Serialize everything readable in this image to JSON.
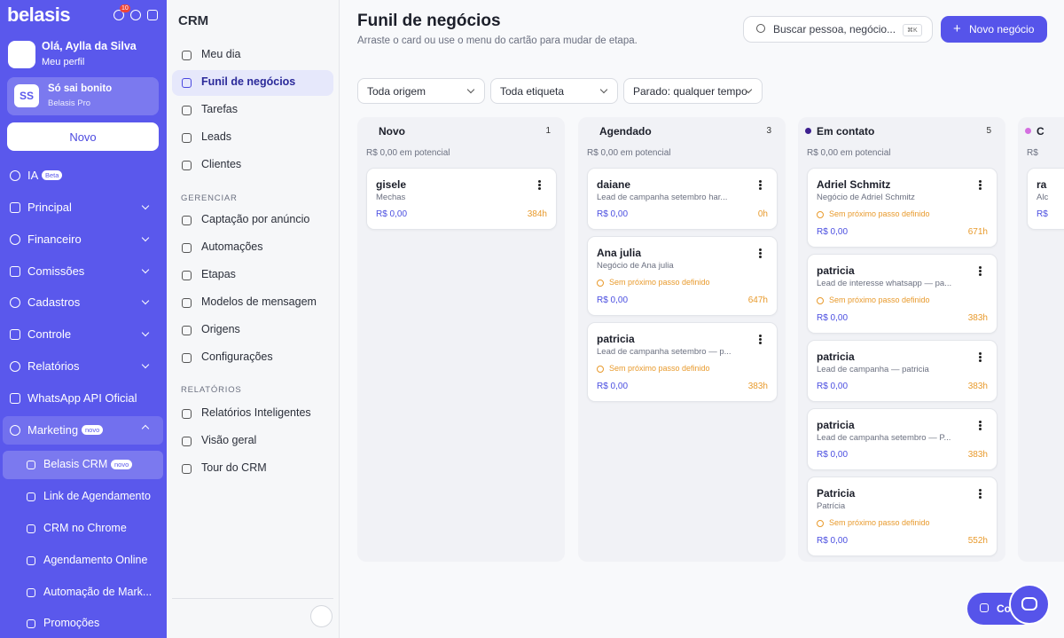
{
  "sidebar": {
    "brand": "belasis",
    "notif_count": "10",
    "greeting": "Olá, Aylla da Silva",
    "profile_link": "Meu perfil",
    "account": {
      "initials": "SS",
      "name": "Só sai bonito",
      "plan": "Belasis Pro"
    },
    "new_button": "Novo",
    "items": [
      {
        "label": "IA",
        "badge": "Beta"
      },
      {
        "label": "Principal"
      },
      {
        "label": "Financeiro"
      },
      {
        "label": "Comissões"
      },
      {
        "label": "Cadastros"
      },
      {
        "label": "Controle"
      },
      {
        "label": "Relatórios"
      },
      {
        "label": "WhatsApp API Oficial"
      },
      {
        "label": "Marketing",
        "badge": "novo"
      }
    ],
    "subitems": [
      {
        "label": "Belasis CRM",
        "badge": "novo"
      },
      {
        "label": "Link de Agendamento"
      },
      {
        "label": "CRM no Chrome"
      },
      {
        "label": "Agendamento Online"
      },
      {
        "label": "Automação de Mark..."
      },
      {
        "label": "Promoções"
      }
    ]
  },
  "crm_menu": {
    "title": "CRM",
    "items": [
      "Meu dia",
      "Funil de negócios",
      "Tarefas",
      "Leads",
      "Clientes"
    ],
    "sections": [
      {
        "title": "GERENCIAR",
        "items": [
          "Captação por anúncio",
          "Automações",
          "Etapas",
          "Modelos de mensagem",
          "Origens",
          "Configurações"
        ]
      },
      {
        "title": "RELATÓRIOS",
        "items": [
          "Relatórios Inteligentes",
          "Visão geral",
          "Tour do CRM"
        ]
      }
    ]
  },
  "header": {
    "title": "Funil de negócios",
    "subtitle": "Arraste o card ou use o menu do cartão para mudar de etapa.",
    "search_placeholder": "Buscar pessoa, negócio...",
    "search_shortcut": "⌘K",
    "new_button": "Novo negócio"
  },
  "filters": [
    "Toda origem",
    "Toda etiqueta",
    "Parado: qualquer tempo"
  ],
  "columns": [
    {
      "name": "Novo",
      "count": 1,
      "potential": "R$ 0,00 em potencial",
      "cards": [
        {
          "title": "gisele",
          "subtitle": "Mechas",
          "value": "R$ 0,00",
          "time": "384h"
        }
      ]
    },
    {
      "name": "Agendado",
      "count": 3,
      "potential": "R$ 0,00 em potencial",
      "cards": [
        {
          "title": "daiane",
          "subtitle": "Lead de campanha setembro har...",
          "value": "R$ 0,00",
          "time": "0h"
        },
        {
          "title": "Ana julia",
          "subtitle": "Negócio de Ana julia",
          "warning": "Sem próximo passo definido",
          "value": "R$ 0,00",
          "time": "647h"
        },
        {
          "title": "patricia",
          "subtitle": "Lead de campanha setembro — p...",
          "warning": "Sem próximo passo definido",
          "value": "R$ 0,00",
          "time": "383h"
        }
      ]
    },
    {
      "name": "Em contato",
      "count": 5,
      "dot_color": "#3d1f8f",
      "potential": "R$ 0,00 em potencial",
      "cards": [
        {
          "title": "Adriel Schmitz",
          "subtitle": "Negócio de Adriel Schmitz",
          "warning": "Sem próximo passo definido",
          "value": "R$ 0,00",
          "time": "671h"
        },
        {
          "title": "patricia",
          "subtitle": "Lead de interesse whatsapp — pa...",
          "warning": "Sem próximo passo definido",
          "value": "R$ 0,00",
          "time": "383h"
        },
        {
          "title": "patricia",
          "subtitle": "Lead de campanha — patricia",
          "value": "R$ 0,00",
          "time": "383h"
        },
        {
          "title": "patricia",
          "subtitle": "Lead de campanha setembro — P...",
          "value": "R$ 0,00",
          "time": "383h"
        },
        {
          "title": "Patricia",
          "subtitle": "Patrícia",
          "warning": "Sem próximo passo definido",
          "value": "R$ 0,00",
          "time": "552h"
        }
      ]
    },
    {
      "name": "C",
      "dot_color": "#d46fe0",
      "potential": "R$",
      "cards": [
        {
          "title": "ra",
          "subtitle": "Alc",
          "value": "R$"
        }
      ]
    }
  ],
  "floating_button": "Co"
}
